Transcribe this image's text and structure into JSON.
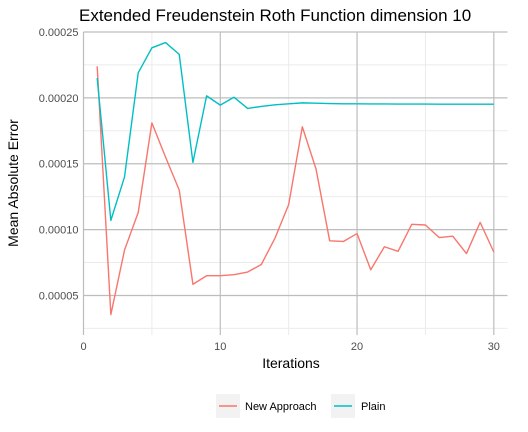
{
  "chart_data": {
    "type": "line",
    "title": "Extended Freudenstein Roth Function dimension 10",
    "xlabel": "Iterations",
    "ylabel": "Mean Absolute Error",
    "xlim": [
      0,
      31
    ],
    "ylim": [
      2e-05,
      0.00025
    ],
    "x_ticks": [
      0,
      10,
      20,
      30
    ],
    "x_tick_labels": [
      "0",
      "10",
      "20",
      "30"
    ],
    "y_ticks": [
      5e-05,
      0.0001,
      0.00015,
      0.0002,
      0.00025
    ],
    "y_tick_labels": [
      "0.00005",
      "0.00010",
      "0.00015",
      "0.00020",
      "0.00025"
    ],
    "grid": true,
    "legend_position": "bottom",
    "x": [
      1,
      2,
      3,
      4,
      5,
      6,
      7,
      8,
      9,
      10,
      11,
      12,
      13,
      14,
      15,
      16,
      17,
      18,
      19,
      20,
      21,
      22,
      23,
      24,
      25,
      26,
      27,
      28,
      29,
      30
    ],
    "series": [
      {
        "name": "New Approach",
        "color": "#F8766D",
        "values": [
          0.000224,
          3.55e-05,
          8.45e-05,
          0.000113,
          0.000181,
          0.000155,
          0.00013,
          5.85e-05,
          6.5e-05,
          6.5e-05,
          6.58e-05,
          6.78e-05,
          7.35e-05,
          9.35e-05,
          0.000119,
          0.000178,
          0.000146,
          9.15e-05,
          9.1e-05,
          9.7e-05,
          6.95e-05,
          8.7e-05,
          8.35e-05,
          0.000104,
          0.0001035,
          9.4e-05,
          9.5e-05,
          8.18e-05,
          0.0001055,
          8.3e-05
        ]
      },
      {
        "name": "Plain",
        "color": "#00BFC4",
        "values": [
          0.000215,
          0.000107,
          0.00014,
          0.000219,
          0.000238,
          0.000242,
          0.000233,
          0.000151,
          0.0002015,
          0.0001945,
          0.0002005,
          0.000192,
          0.0001935,
          0.0001947,
          0.0001955,
          0.0001962,
          0.000196,
          0.0001957,
          0.0001955,
          0.0001955,
          0.0001954,
          0.0001954,
          0.0001953,
          0.0001953,
          0.0001953,
          0.0001952,
          0.0001952,
          0.0001952,
          0.0001952,
          0.0001952
        ]
      }
    ]
  }
}
